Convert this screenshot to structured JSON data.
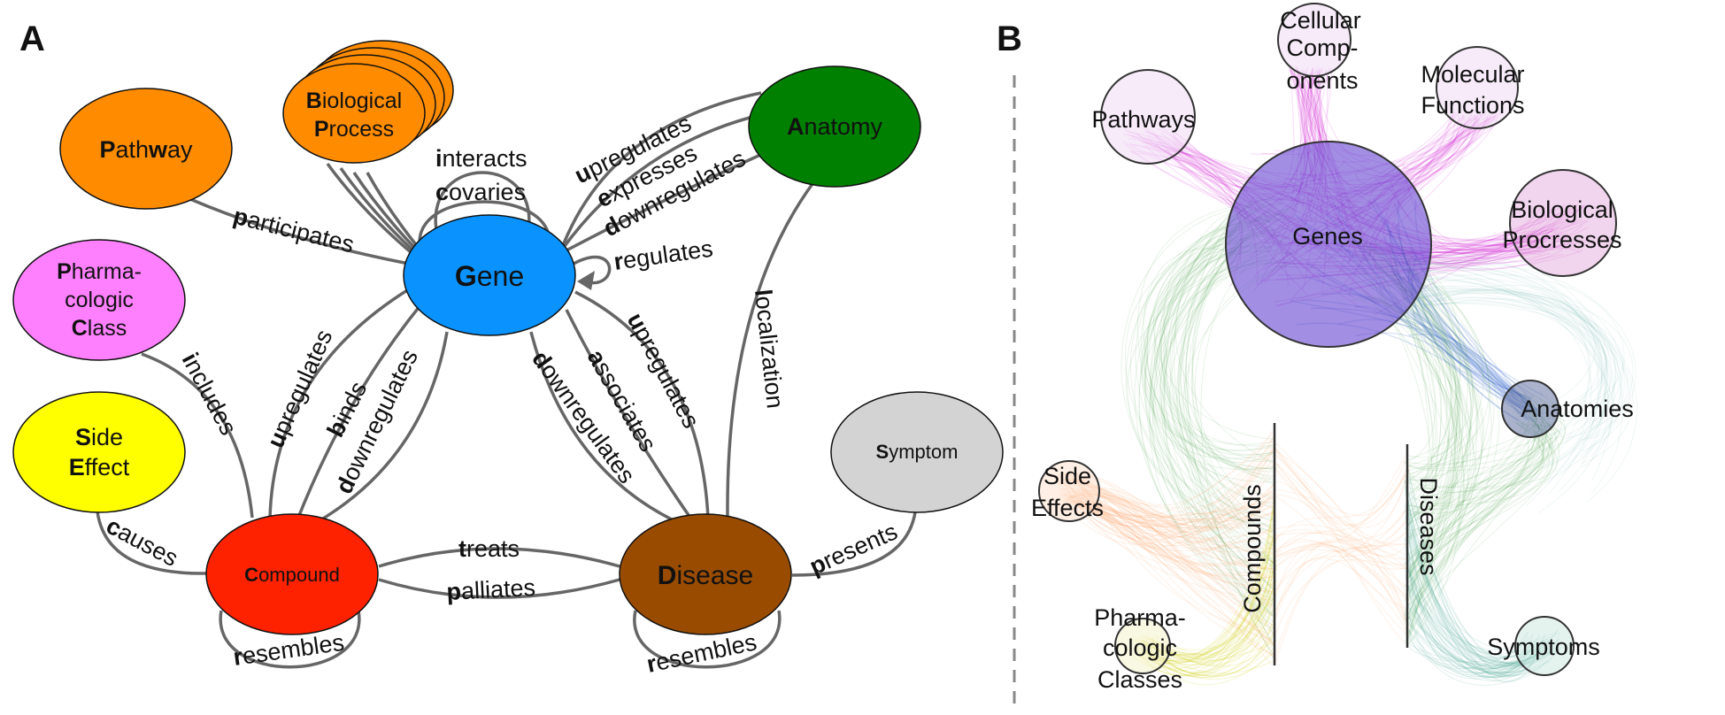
{
  "panel_a": {
    "letter": "A",
    "nodes": {
      "gene": {
        "initial": "G",
        "rest": "ene",
        "color": "#0a93ff"
      },
      "pathway": {
        "initial": "P",
        "rest": "ath",
        "initial2": "w",
        "rest2": "ay",
        "color": "#ff8c00"
      },
      "biological_process": {
        "line1_initial": "B",
        "line1_rest": "iological",
        "line2_initial": "P",
        "line2_rest": "rocess",
        "color": "#ff8c00"
      },
      "anatomy": {
        "initial": "A",
        "rest": "natomy",
        "color": "#008000"
      },
      "pharmacologic_class": {
        "line1_initial": "P",
        "line1_rest": "harma-",
        "line2": "cologic",
        "line3_initial": "C",
        "line3_rest": "lass",
        "color": "#ff80ff"
      },
      "side_effect": {
        "line1_initial": "S",
        "line1_rest": "ide",
        "line2_initial": "E",
        "line2_rest": "ffect",
        "color": "#ffff00"
      },
      "symptom": {
        "initial": "S",
        "rest": "ymptom",
        "color": "#d3d3d3"
      },
      "compound": {
        "initial": "C",
        "rest": "ompound",
        "color": "#ff2200"
      },
      "disease": {
        "initial": "D",
        "rest": "isease",
        "color": "#994c00"
      }
    },
    "edges": {
      "participates": {
        "initial": "p",
        "rest": "articipates"
      },
      "interacts": {
        "initial": "i",
        "rest": "nteracts"
      },
      "covaries": {
        "initial": "c",
        "rest": "ovaries"
      },
      "gene_upregulates_anatomy": {
        "initial": "u",
        "rest": "pregulates"
      },
      "expresses": {
        "initial": "e",
        "rest": "xpresses"
      },
      "gene_downregulates_anatomy": {
        "initial": "d",
        "rest": "ownregulates"
      },
      "regulates": {
        "initial": "r",
        "rest": "egulates"
      },
      "includes": {
        "initial": "i",
        "rest": "ncludes"
      },
      "compound_upregulates": {
        "initial": "u",
        "rest": "pregulates"
      },
      "binds": {
        "initial": "b",
        "rest": "inds"
      },
      "compound_downregulates": {
        "initial": "d",
        "rest": "ownregulates"
      },
      "disease_downregulates": {
        "initial": "d",
        "rest": "ownregulates"
      },
      "associates": {
        "initial": "a",
        "rest": "ssociates"
      },
      "disease_upregulates": {
        "initial": "u",
        "rest": "pregulates"
      },
      "localization": {
        "initial": "l",
        "rest": "ocalization"
      },
      "causes": {
        "initial": "c",
        "rest": "auses"
      },
      "treats": {
        "initial": "t",
        "rest": "reats"
      },
      "palliates": {
        "initial": "p",
        "rest": "alliates"
      },
      "presents": {
        "initial": "p",
        "rest": "resents"
      },
      "compound_resembles": {
        "initial": "r",
        "rest": "esembles"
      },
      "disease_resembles": {
        "initial": "r",
        "rest": "esembles"
      }
    }
  },
  "panel_b": {
    "letter": "B",
    "labels": {
      "cellular_components": [
        "Cellular",
        "Comp-",
        "onents"
      ],
      "molecular_functions": [
        "Molecular",
        "Functions"
      ],
      "pathways": [
        "Pathways"
      ],
      "genes": [
        "Genes"
      ],
      "biological_processes": [
        "Biological",
        "Procresses"
      ],
      "anatomies": [
        "Anatomies"
      ],
      "side_effects": [
        "Side",
        "Effects"
      ],
      "compounds": [
        "Compounds"
      ],
      "diseases": [
        "Diseases"
      ],
      "pharmacologic_classes": [
        "Pharma-",
        "cologic",
        "Classes"
      ],
      "symptoms": [
        "Symptoms"
      ]
    },
    "colors": {
      "magenta": "#cc00cc",
      "orange": "#ff8844",
      "green": "#228b22",
      "teal": "#339988",
      "blue": "#3366cc",
      "yellow": "#cccc00"
    }
  }
}
